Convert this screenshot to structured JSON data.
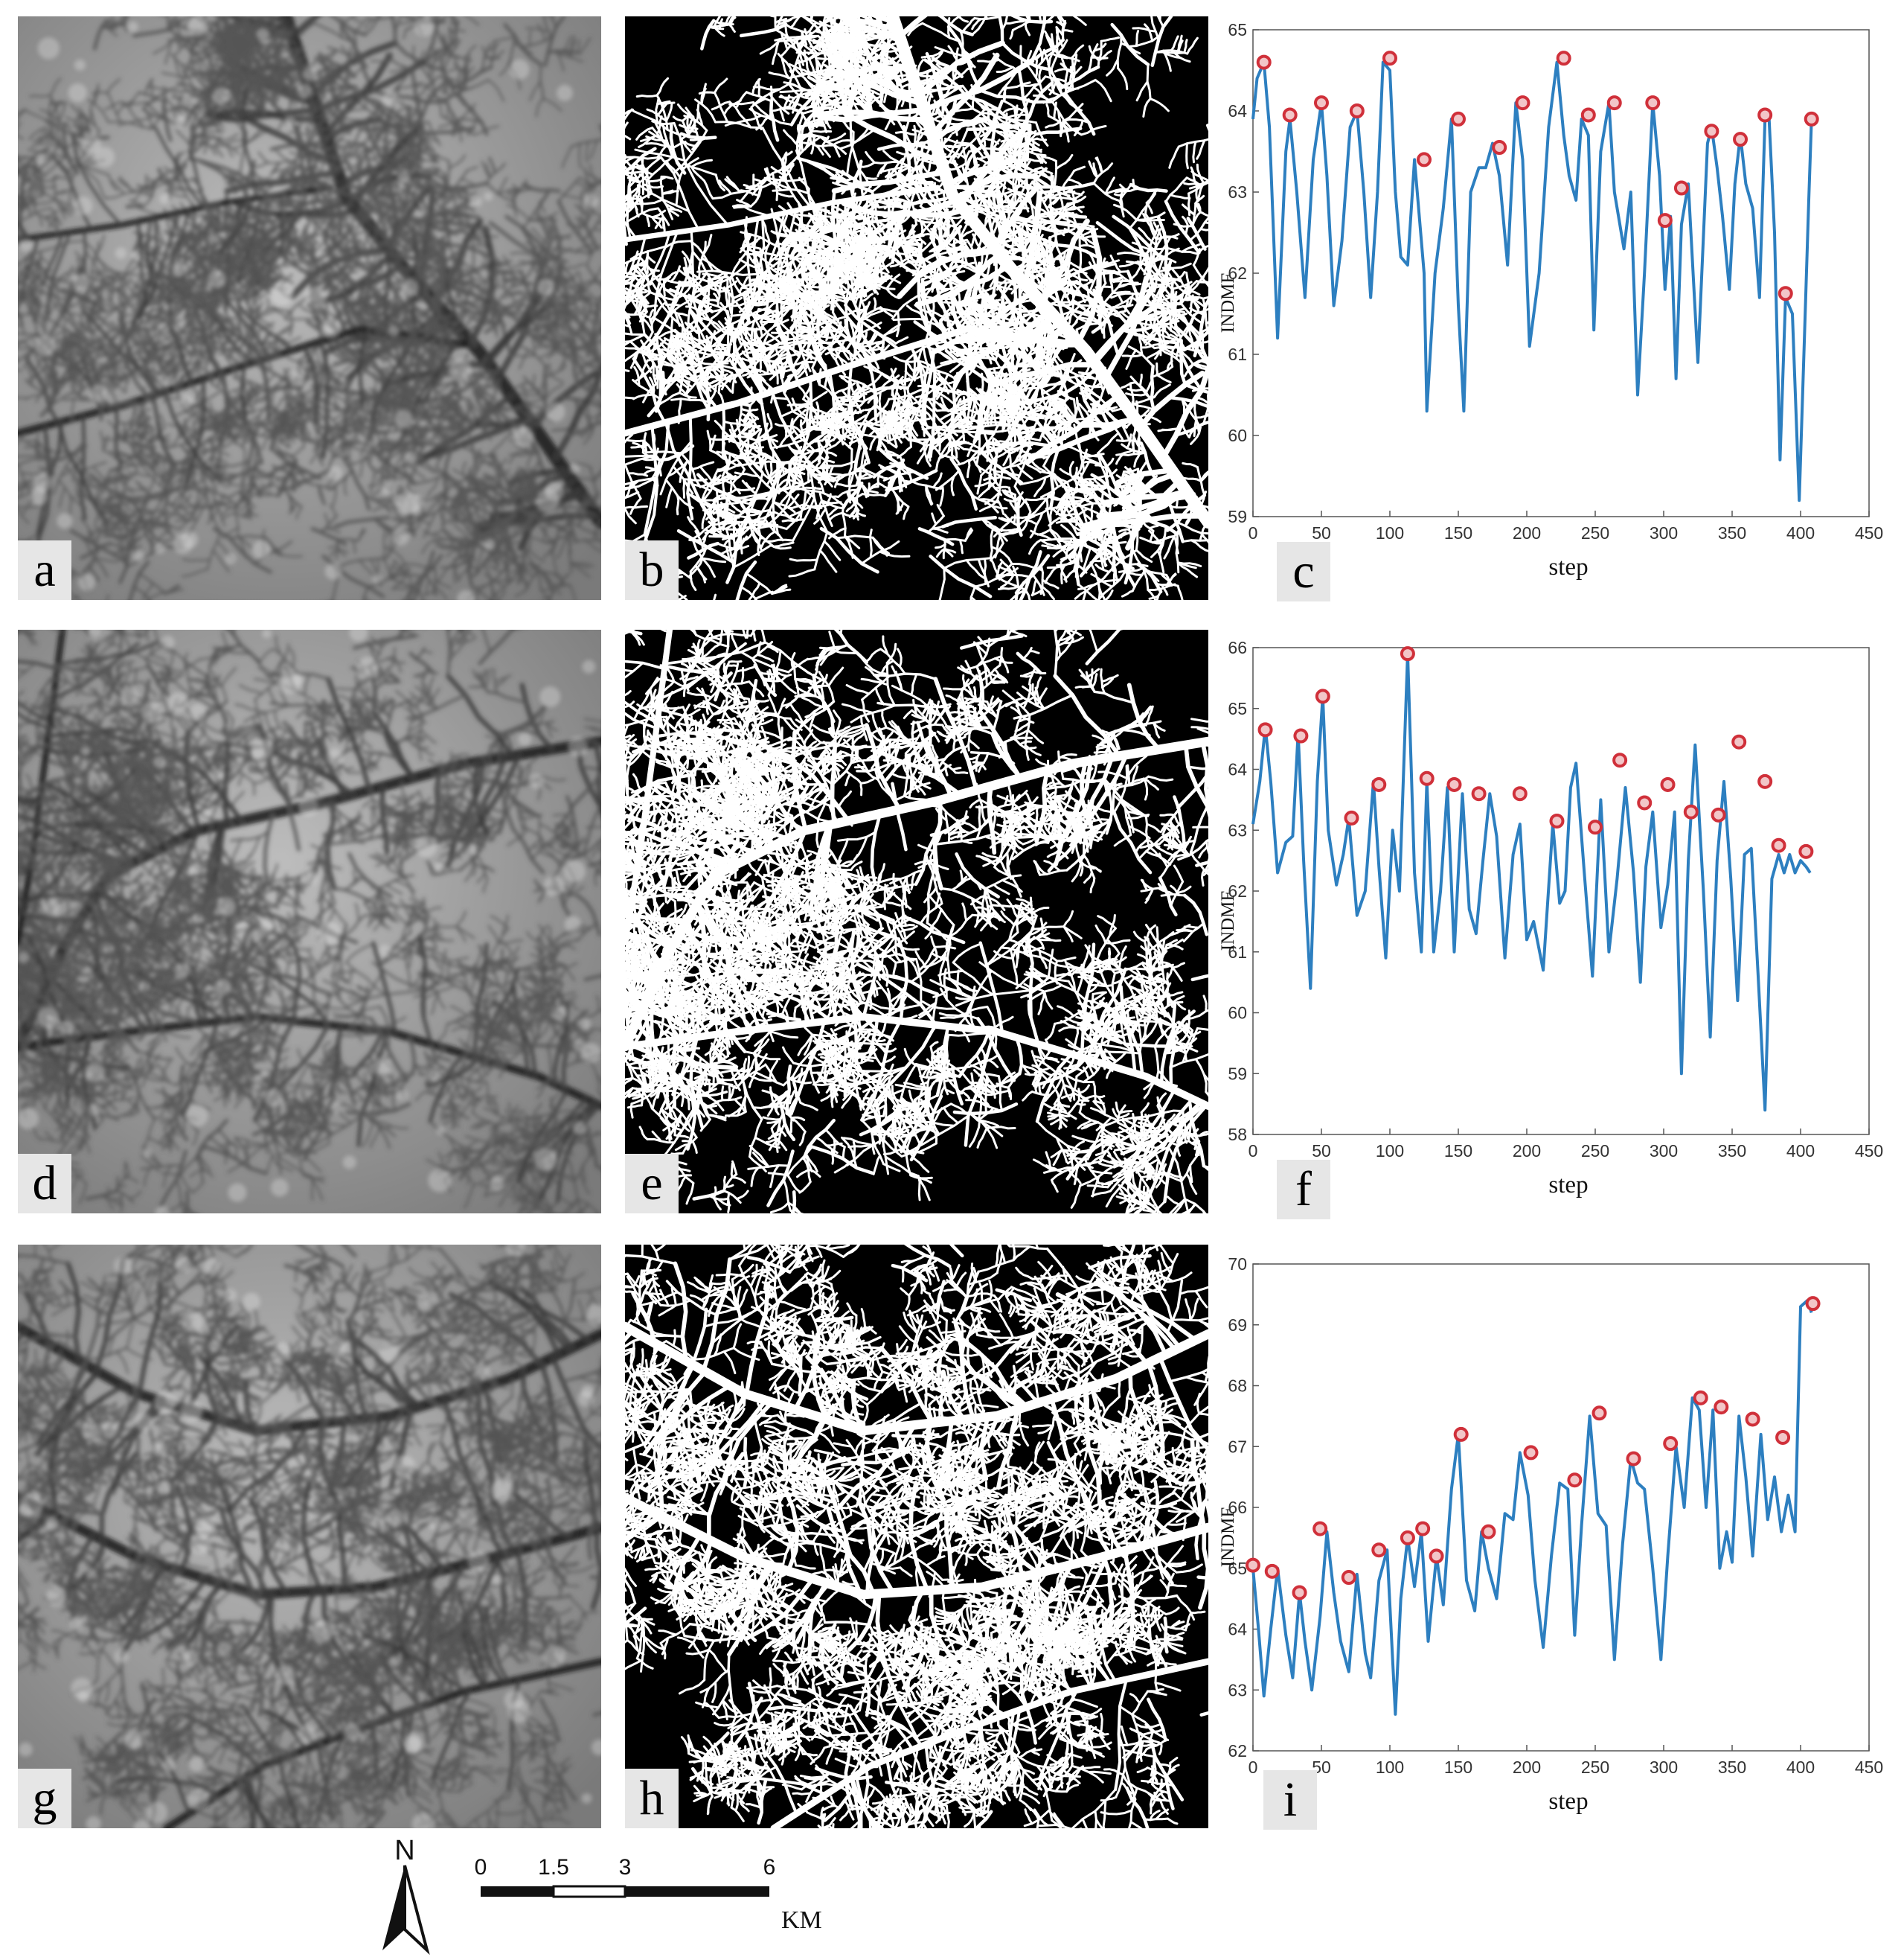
{
  "panels": {
    "a": {
      "label": "a",
      "kind": "dem"
    },
    "b": {
      "label": "b",
      "kind": "binary"
    },
    "d": {
      "label": "d",
      "kind": "dem"
    },
    "e": {
      "label": "e",
      "kind": "binary"
    },
    "g": {
      "label": "g",
      "kind": "dem"
    },
    "h": {
      "label": "h",
      "kind": "binary"
    }
  },
  "colors": {
    "line": "#2d7fc0",
    "marker_edge": "#d0303a",
    "marker_fill": "#f2c6c8",
    "axis": "#555555"
  },
  "chart_data": [
    {
      "panel_label": "c",
      "type": "line",
      "xlabel": "step",
      "ylabel": "INDMF",
      "xlim": [
        0,
        450
      ],
      "ylim": [
        59,
        65
      ],
      "xticks": [
        0,
        50,
        100,
        150,
        200,
        250,
        300,
        350,
        400,
        450
      ],
      "yticks": [
        59,
        60,
        61,
        62,
        63,
        64,
        65
      ],
      "series": [
        {
          "name": "INDMF",
          "x": [
            0,
            3,
            8,
            12,
            18,
            24,
            27,
            32,
            38,
            44,
            50,
            54,
            59,
            65,
            71,
            76,
            81,
            86,
            91,
            95,
            100,
            104,
            108,
            113,
            118,
            125,
            127,
            133,
            139,
            145,
            150,
            154,
            159,
            165,
            170,
            175,
            180,
            186,
            192,
            197,
            202,
            209,
            216,
            222,
            227,
            231,
            236,
            240,
            245,
            249,
            254,
            260,
            264,
            271,
            276,
            281,
            286,
            292,
            297,
            301,
            305,
            309,
            313,
            318,
            325,
            332,
            335,
            339,
            343,
            348,
            352,
            356,
            360,
            365,
            370,
            374,
            377,
            381,
            385,
            389,
            394,
            399,
            403,
            406,
            408
          ],
          "values": [
            63.9,
            64.4,
            64.6,
            63.8,
            61.2,
            63.5,
            63.9,
            63.0,
            61.7,
            63.4,
            64.1,
            63.2,
            61.6,
            62.4,
            63.8,
            64.0,
            63.0,
            61.7,
            63.0,
            64.6,
            64.5,
            63.0,
            62.2,
            62.1,
            63.4,
            62.0,
            60.3,
            62.0,
            62.8,
            63.9,
            61.6,
            60.3,
            63.0,
            63.3,
            63.3,
            63.6,
            63.2,
            62.1,
            64.1,
            63.4,
            61.1,
            62.0,
            63.8,
            64.6,
            63.7,
            63.2,
            62.9,
            63.9,
            63.7,
            61.3,
            63.5,
            64.1,
            63.0,
            62.3,
            63.0,
            60.5,
            62.0,
            64.1,
            63.2,
            61.8,
            62.7,
            60.7,
            62.6,
            63.1,
            60.9,
            63.6,
            63.8,
            63.3,
            62.7,
            61.8,
            63.1,
            63.7,
            63.1,
            62.8,
            61.7,
            63.9,
            63.9,
            62.5,
            59.7,
            61.7,
            61.5,
            59.2,
            61.3,
            62.9,
            63.9
          ]
        }
      ],
      "peaks": {
        "x": [
          8,
          27,
          50,
          76,
          100,
          125,
          150,
          180,
          197,
          227,
          245,
          264,
          292,
          301,
          313,
          335,
          356,
          374,
          389,
          408
        ],
        "values": [
          64.6,
          63.95,
          64.1,
          64.0,
          64.65,
          63.4,
          63.9,
          63.55,
          64.1,
          64.65,
          63.95,
          64.1,
          64.1,
          62.65,
          63.05,
          63.75,
          63.65,
          63.95,
          61.75,
          63.9
        ]
      }
    },
    {
      "panel_label": "f",
      "type": "line",
      "xlabel": "step",
      "ylabel": "INDMF",
      "xlim": [
        0,
        450
      ],
      "ylim": [
        58,
        66
      ],
      "xticks": [
        0,
        50,
        100,
        150,
        200,
        250,
        300,
        350,
        400,
        450
      ],
      "yticks": [
        58,
        59,
        60,
        61,
        62,
        63,
        64,
        65,
        66
      ],
      "series": [
        {
          "name": "INDMF",
          "x": [
            0,
            5,
            9,
            13,
            18,
            24,
            29,
            33,
            37,
            42,
            47,
            51,
            55,
            61,
            66,
            70,
            76,
            82,
            88,
            92,
            97,
            102,
            107,
            113,
            118,
            123,
            127,
            132,
            137,
            142,
            147,
            153,
            158,
            163,
            168,
            173,
            178,
            184,
            190,
            195,
            200,
            205,
            212,
            219,
            224,
            228,
            232,
            236,
            242,
            248,
            254,
            260,
            266,
            272,
            278,
            283,
            287,
            292,
            298,
            303,
            308,
            313,
            318,
            323,
            329,
            334,
            339,
            344,
            349,
            354,
            359,
            364,
            369,
            374,
            379,
            384,
            388,
            392,
            396,
            400,
            404,
            407
          ],
          "values": [
            63.1,
            63.8,
            64.7,
            63.8,
            62.3,
            62.8,
            62.9,
            64.6,
            62.5,
            60.4,
            63.8,
            65.2,
            63.0,
            62.1,
            62.6,
            63.2,
            61.6,
            62.0,
            63.8,
            62.4,
            60.9,
            63.0,
            62.0,
            65.9,
            62.3,
            61.0,
            63.8,
            61.0,
            62.0,
            63.7,
            61.0,
            63.6,
            61.7,
            61.3,
            62.5,
            63.6,
            62.9,
            60.9,
            62.6,
            63.1,
            61.2,
            61.5,
            60.7,
            63.1,
            61.8,
            62.0,
            63.7,
            64.1,
            62.3,
            60.6,
            63.5,
            61.0,
            62.2,
            63.7,
            62.3,
            60.5,
            62.4,
            63.3,
            61.4,
            62.1,
            63.3,
            59.0,
            62.5,
            64.4,
            62.0,
            59.6,
            62.5,
            63.8,
            62.2,
            60.2,
            62.6,
            62.7,
            60.6,
            58.4,
            62.2,
            62.6,
            62.3,
            62.6,
            62.3,
            62.5,
            62.4,
            62.3
          ]
        }
      ],
      "peaks": {
        "x": [
          9,
          35,
          51,
          72,
          92,
          113,
          127,
          147,
          165,
          195,
          222,
          250,
          268,
          286,
          303,
          320,
          340,
          355,
          374,
          384,
          404
        ],
        "values": [
          64.65,
          64.55,
          65.2,
          63.2,
          63.75,
          65.9,
          63.85,
          63.75,
          63.6,
          63.6,
          63.15,
          63.05,
          64.15,
          63.45,
          63.75,
          63.3,
          63.25,
          64.45,
          63.8,
          62.75,
          62.65
        ]
      }
    },
    {
      "panel_label": "i",
      "type": "line",
      "xlabel": "step",
      "ylabel": "INDMF",
      "xlim": [
        0,
        450
      ],
      "ylim": [
        62,
        70
      ],
      "xticks": [
        0,
        50,
        100,
        150,
        200,
        250,
        300,
        350,
        400,
        450
      ],
      "yticks": [
        62,
        63,
        64,
        65,
        66,
        67,
        68,
        69,
        70
      ],
      "series": [
        {
          "name": "INDMF",
          "x": [
            0,
            4,
            8,
            13,
            18,
            24,
            29,
            34,
            38,
            43,
            49,
            54,
            59,
            64,
            70,
            76,
            82,
            86,
            92,
            98,
            104,
            108,
            113,
            118,
            123,
            128,
            134,
            139,
            145,
            150,
            156,
            162,
            167,
            172,
            178,
            184,
            190,
            195,
            201,
            206,
            212,
            218,
            224,
            230,
            235,
            240,
            246,
            252,
            258,
            264,
            270,
            276,
            281,
            286,
            292,
            298,
            303,
            309,
            315,
            321,
            326,
            331,
            336,
            341,
            346,
            350,
            355,
            360,
            365,
            371,
            376,
            381,
            386,
            391,
            396,
            400,
            405,
            408
          ],
          "values": [
            65.0,
            64.0,
            62.9,
            64.0,
            65.0,
            63.9,
            63.2,
            64.6,
            63.8,
            63.0,
            64.2,
            65.6,
            64.6,
            63.8,
            63.3,
            64.9,
            63.6,
            63.2,
            64.8,
            65.3,
            62.6,
            64.5,
            65.5,
            64.7,
            65.6,
            63.8,
            65.2,
            64.4,
            66.3,
            67.2,
            64.8,
            64.3,
            65.6,
            65.0,
            64.5,
            65.9,
            65.8,
            66.9,
            66.2,
            64.8,
            63.7,
            65.2,
            66.4,
            66.3,
            63.9,
            65.7,
            67.5,
            65.9,
            65.7,
            63.5,
            65.4,
            66.8,
            66.4,
            66.3,
            65.0,
            63.5,
            65.2,
            67.0,
            66.0,
            67.8,
            67.6,
            66.0,
            67.6,
            65.0,
            65.6,
            65.1,
            67.5,
            66.5,
            65.2,
            67.2,
            65.8,
            66.5,
            65.6,
            66.2,
            65.6,
            69.3,
            69.4,
            69.2
          ]
        }
      ],
      "peaks": {
        "x": [
          0,
          14,
          34,
          49,
          70,
          92,
          113,
          124,
          134,
          152,
          172,
          203,
          235,
          253,
          278,
          305,
          327,
          342,
          365,
          387,
          409
        ],
        "values": [
          65.05,
          64.95,
          64.6,
          65.65,
          64.85,
          65.3,
          65.5,
          65.65,
          65.2,
          67.2,
          65.6,
          66.9,
          66.45,
          67.55,
          66.8,
          67.05,
          67.8,
          67.65,
          67.45,
          67.15,
          69.35
        ]
      }
    }
  ],
  "scalebar": {
    "north": "N",
    "ticks": [
      "0",
      "1.5",
      "3",
      "6"
    ],
    "unit": "KM"
  }
}
